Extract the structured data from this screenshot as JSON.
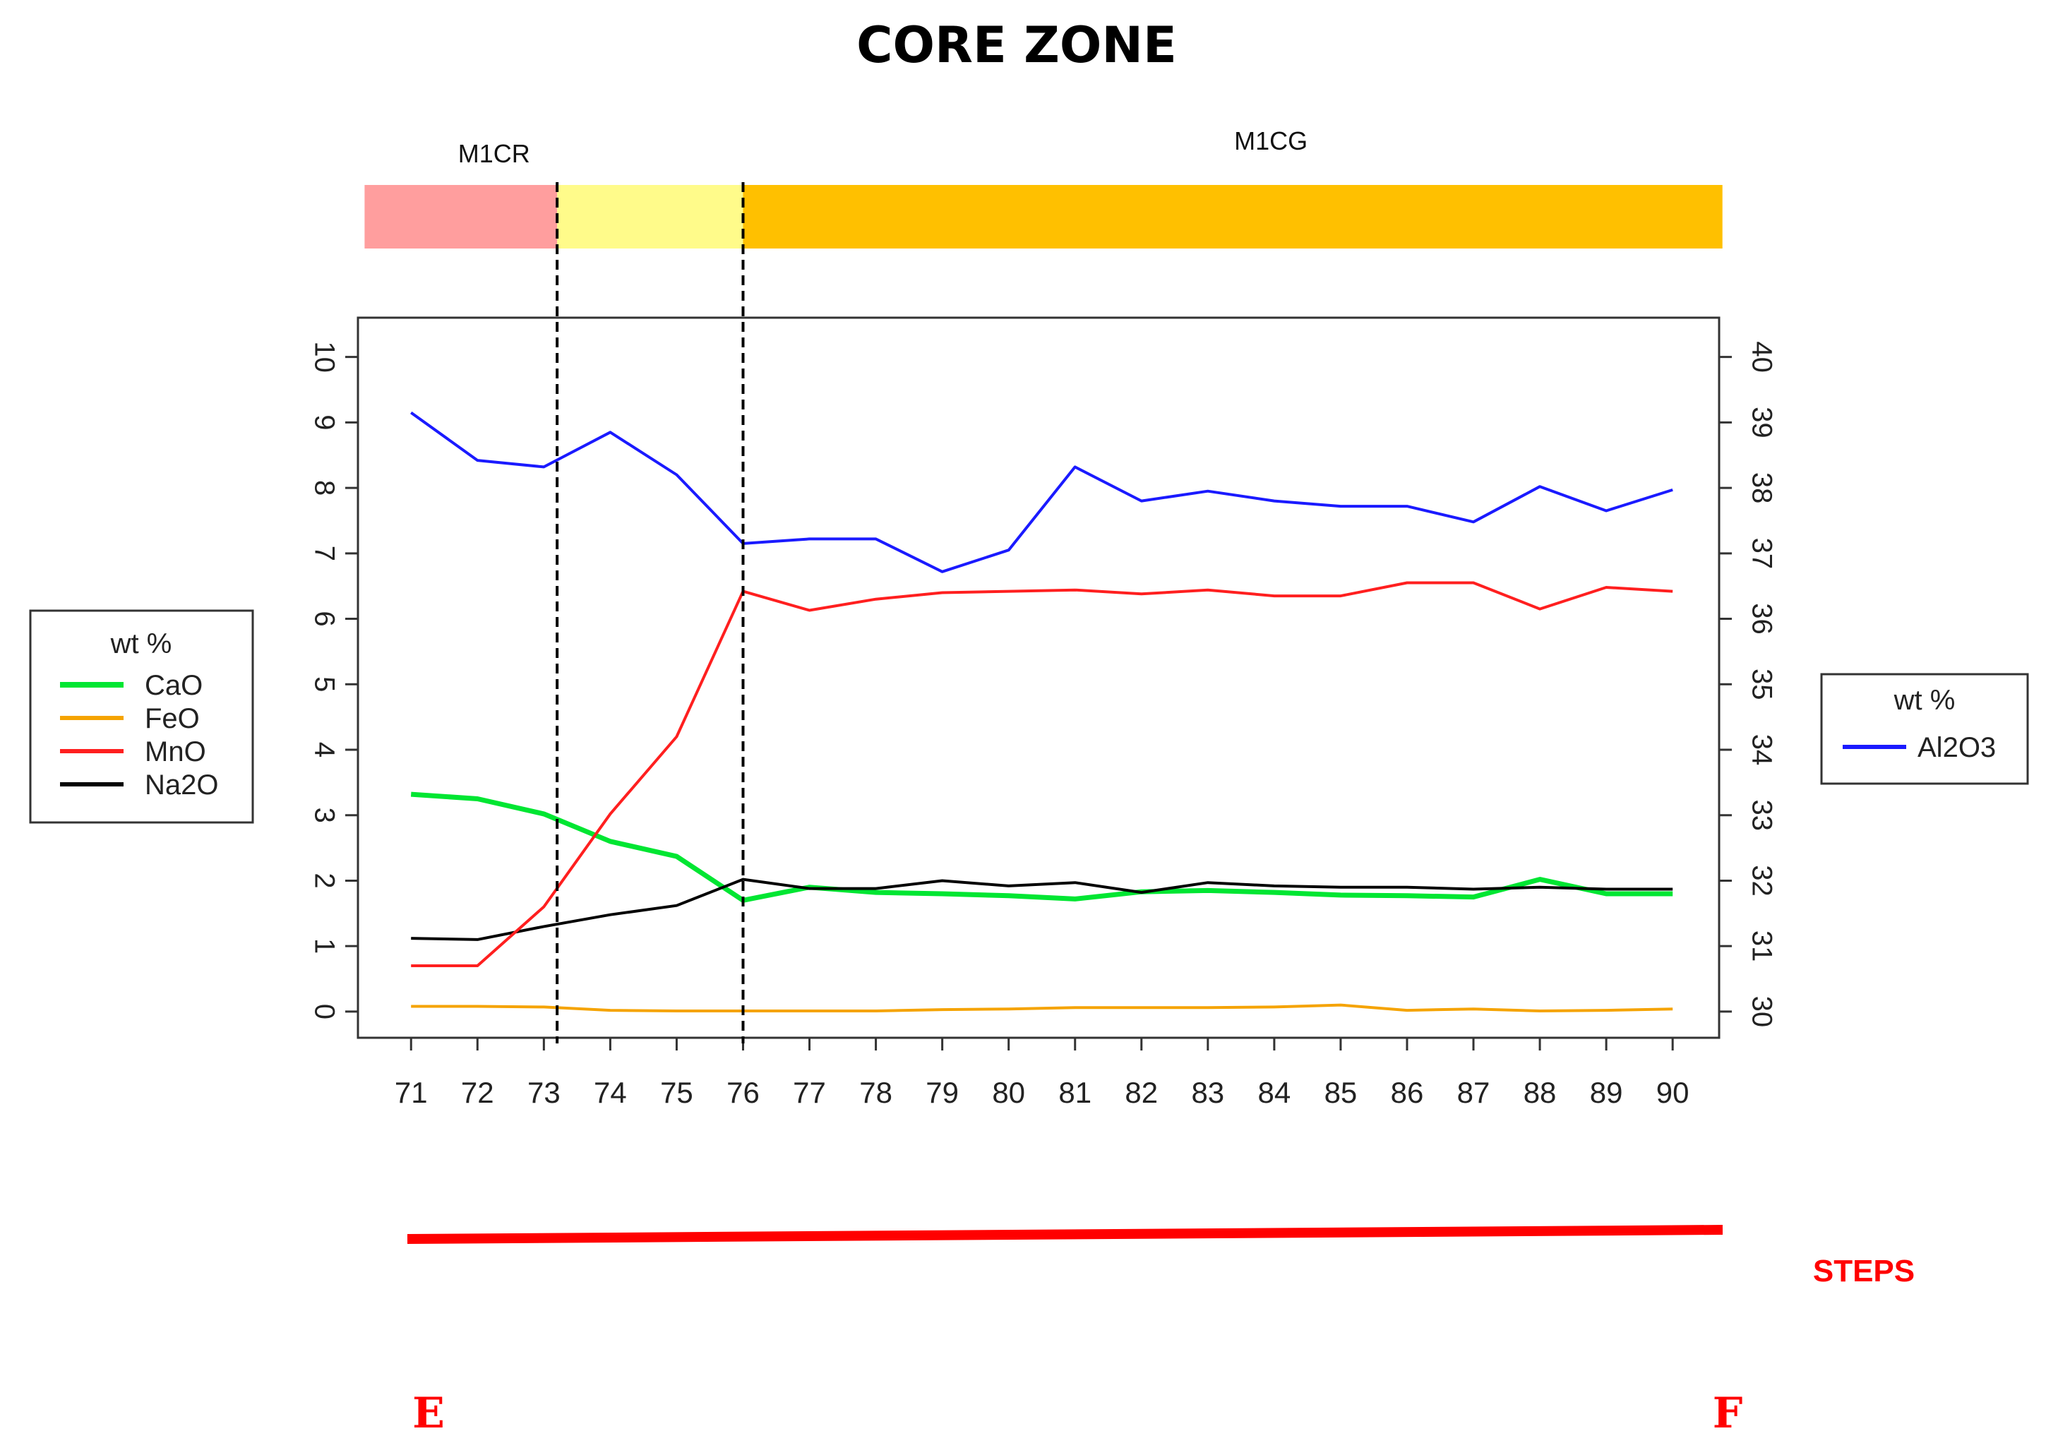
{
  "chart_data": {
    "type": "line",
    "title": "CORE ZONE",
    "x": [
      71,
      72,
      73,
      74,
      75,
      76,
      77,
      78,
      79,
      80,
      81,
      82,
      83,
      84,
      85,
      86,
      87,
      88,
      89,
      90
    ],
    "xlim": [
      70.2,
      90.7
    ],
    "ylim_left": [
      -0.4,
      10.6
    ],
    "yticks_left": [
      0,
      1,
      2,
      3,
      4,
      5,
      6,
      7,
      8,
      9,
      10
    ],
    "ylim_right": [
      29.6,
      40.6
    ],
    "yticks_right": [
      30,
      31,
      32,
      33,
      34,
      35,
      36,
      37,
      38,
      39,
      40
    ],
    "series_left": [
      {
        "name": "CaO",
        "color": "#00e632",
        "values": [
          3.32,
          3.25,
          3.02,
          2.6,
          2.37,
          1.7,
          1.9,
          1.82,
          1.8,
          1.77,
          1.72,
          1.83,
          1.85,
          1.82,
          1.78,
          1.77,
          1.75,
          2.02,
          1.8,
          1.8
        ]
      },
      {
        "name": "FeO",
        "color": "#f5a300",
        "values": [
          0.08,
          0.08,
          0.07,
          0.02,
          0.01,
          0.01,
          0.01,
          0.01,
          0.03,
          0.04,
          0.06,
          0.06,
          0.06,
          0.07,
          0.1,
          0.02,
          0.04,
          0.01,
          0.02,
          0.04
        ]
      },
      {
        "name": "MnO",
        "color": "#ff1f1f",
        "values": [
          0.7,
          0.7,
          1.6,
          3.02,
          4.2,
          6.42,
          6.13,
          6.3,
          6.4,
          6.42,
          6.44,
          6.38,
          6.44,
          6.35,
          6.35,
          6.55,
          6.55,
          6.15,
          6.48,
          6.42
        ]
      },
      {
        "name": "Na2O",
        "color": "#000000",
        "values": [
          1.12,
          1.1,
          1.3,
          1.48,
          1.62,
          2.02,
          1.88,
          1.88,
          2.0,
          1.92,
          1.97,
          1.82,
          1.97,
          1.92,
          1.9,
          1.9,
          1.87,
          1.9,
          1.87,
          1.87
        ]
      }
    ],
    "series_right": [
      {
        "name": "Al2O3",
        "color": "#1a1aff",
        "values": [
          39.15,
          38.42,
          38.32,
          38.85,
          38.2,
          37.15,
          37.22,
          37.22,
          36.72,
          37.05,
          38.32,
          37.8,
          37.95,
          37.8,
          37.72,
          37.72,
          37.48,
          38.02,
          37.65,
          37.97
        ]
      }
    ],
    "legend_left": {
      "title": "wt %",
      "position": "left"
    },
    "legend_right": {
      "title": "wt %",
      "label": "Al2O3",
      "position": "right"
    },
    "zones": {
      "labels": [
        {
          "text": "M1CR",
          "x_center": 72.25
        },
        {
          "text": "M1CG",
          "x_center": 83.95
        }
      ],
      "bands": [
        {
          "color": "#ff9e9e",
          "from": 70.3,
          "to": 73.2
        },
        {
          "color": "#fffb8a",
          "from": 73.2,
          "to": 76.0
        },
        {
          "color": "#ffc000",
          "from": 76.0,
          "to": 90.75
        }
      ],
      "boundaries": [
        73.2,
        76.0
      ]
    },
    "steps": {
      "label": "STEPS",
      "color": "#ff0000",
      "start": "E",
      "end": "F"
    }
  }
}
